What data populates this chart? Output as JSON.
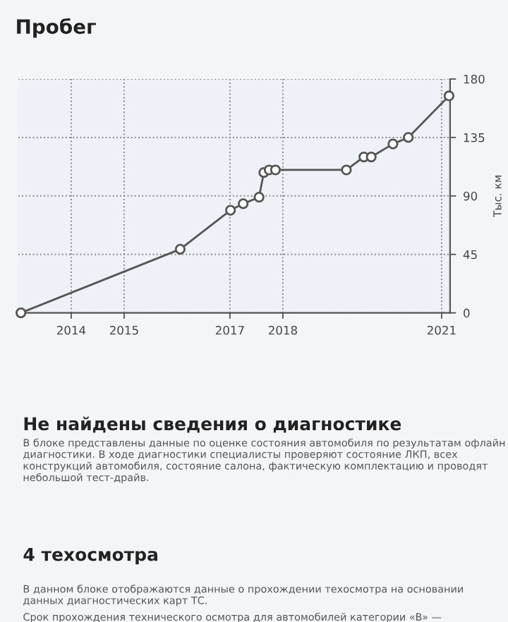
{
  "chart_data": {
    "type": "line",
    "title": "Пробег",
    "ylabel": "Тыс. км",
    "x": [
      2013.05,
      2016.06,
      2017.01,
      2017.25,
      2017.55,
      2017.64,
      2017.74,
      2017.86,
      2019.2,
      2019.53,
      2019.67,
      2020.08,
      2020.37,
      2021.14
    ],
    "series": [
      {
        "color": "#555555",
        "values": [
          0,
          49,
          79,
          84,
          89,
          108,
          110,
          110,
          110,
          120,
          120,
          130,
          135,
          167
        ]
      }
    ],
    "xlim": [
      2013,
      2021.16
    ],
    "xticks": [
      2014,
      2015,
      2017,
      2018,
      2021
    ],
    "ylim": [
      0,
      180
    ],
    "yticks": [
      0,
      45,
      90,
      135,
      180
    ],
    "grid": true,
    "marker": "circle",
    "line_style": "solid",
    "legend": false,
    "annotations": [
      "Не найдены сведения о диагностике",
      "В блоке представлены данные по оценке состояния автомобиля по результатам офлайн диагностики. В ходе диагностики специалисты проверяют состояние ЛКП, всех конструкций автомобиля, состояние салона, фактическую комплектацию и проводят небольшой тест-драйв.",
      "4 техосмотра",
      "В данном блоке отображаются данные о прохождении техосмотра на основании данных диагностических карт ТС.",
      "Срок прохождения технического осмотра для автомобилей категории «B» —"
    ]
  }
}
